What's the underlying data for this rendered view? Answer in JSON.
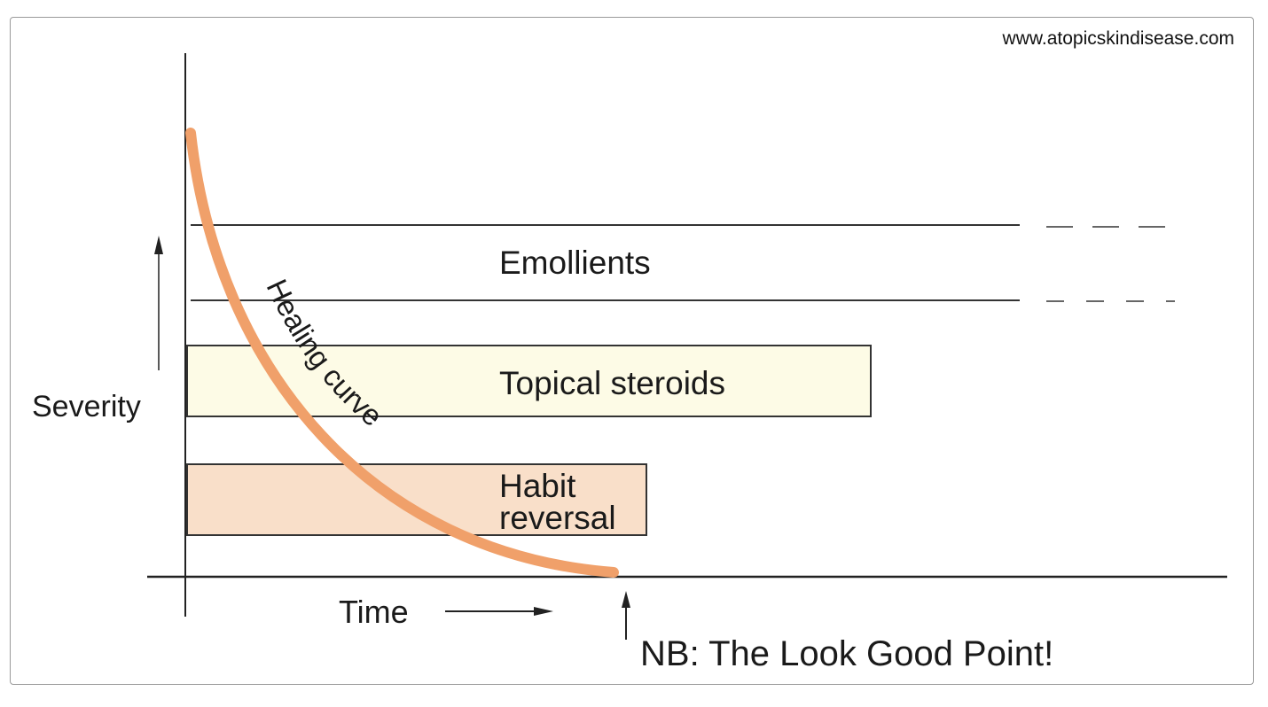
{
  "source_url": "www.atopicskindisease.com",
  "axes": {
    "y_label": "Severity",
    "x_label": "Time"
  },
  "bands": [
    {
      "lines": [
        "Emollients"
      ],
      "fill": "#ffffff",
      "continues": true
    },
    {
      "lines": [
        "Topical steroids"
      ],
      "fill": "#fdfbe6",
      "continues": false
    },
    {
      "lines": [
        "Habit",
        "reversal"
      ],
      "fill": "#f9dfc9",
      "continues": false
    }
  ],
  "curve": {
    "label": "Healing curve",
    "color": "#f0a06a"
  },
  "annotation": "NB: The Look Good Point!"
}
